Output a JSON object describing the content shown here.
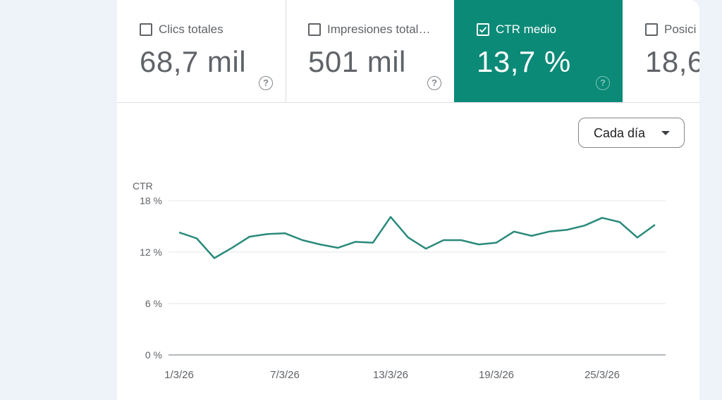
{
  "metrics": [
    {
      "label": "Clics totales",
      "value": "68,7 mil",
      "checked": false,
      "help_icon": "?"
    },
    {
      "label": "Impresiones total…",
      "value": "501 mil",
      "checked": false,
      "help_icon": "?"
    },
    {
      "label": "CTR medio",
      "value": "13,7 %",
      "checked": true,
      "help_icon": "?"
    },
    {
      "label": "Posici",
      "value": "18,6",
      "checked": false,
      "help_icon": ""
    }
  ],
  "granularity_select": {
    "value": "Cada día"
  },
  "colors": {
    "accent": "#0b8a78",
    "line": "#2a8a7b",
    "background": "#eef2f9"
  },
  "chart_data": {
    "type": "line",
    "ylabel": "CTR",
    "ylim": [
      0,
      18
    ],
    "yticks": [
      "18 %",
      "12 %",
      "6 %",
      "0 %"
    ],
    "ytick_values": [
      18,
      12,
      6,
      0
    ],
    "xticks": [
      "1/3/26",
      "7/3/26",
      "13/3/26",
      "19/3/26",
      "25/3/26"
    ],
    "xtick_day_index": [
      0,
      6,
      12,
      18,
      24
    ],
    "series": [
      {
        "values": [
          14.3,
          13.6,
          11.3,
          12.5,
          13.8,
          14.1,
          14.2,
          13.4,
          12.9,
          12.5,
          13.2,
          13.1,
          16.1,
          13.7,
          12.4,
          13.4,
          13.4,
          12.9,
          13.1,
          14.4,
          13.9,
          14.4,
          14.6,
          15.1,
          16.0,
          15.5,
          13.7,
          15.2
        ]
      }
    ]
  }
}
